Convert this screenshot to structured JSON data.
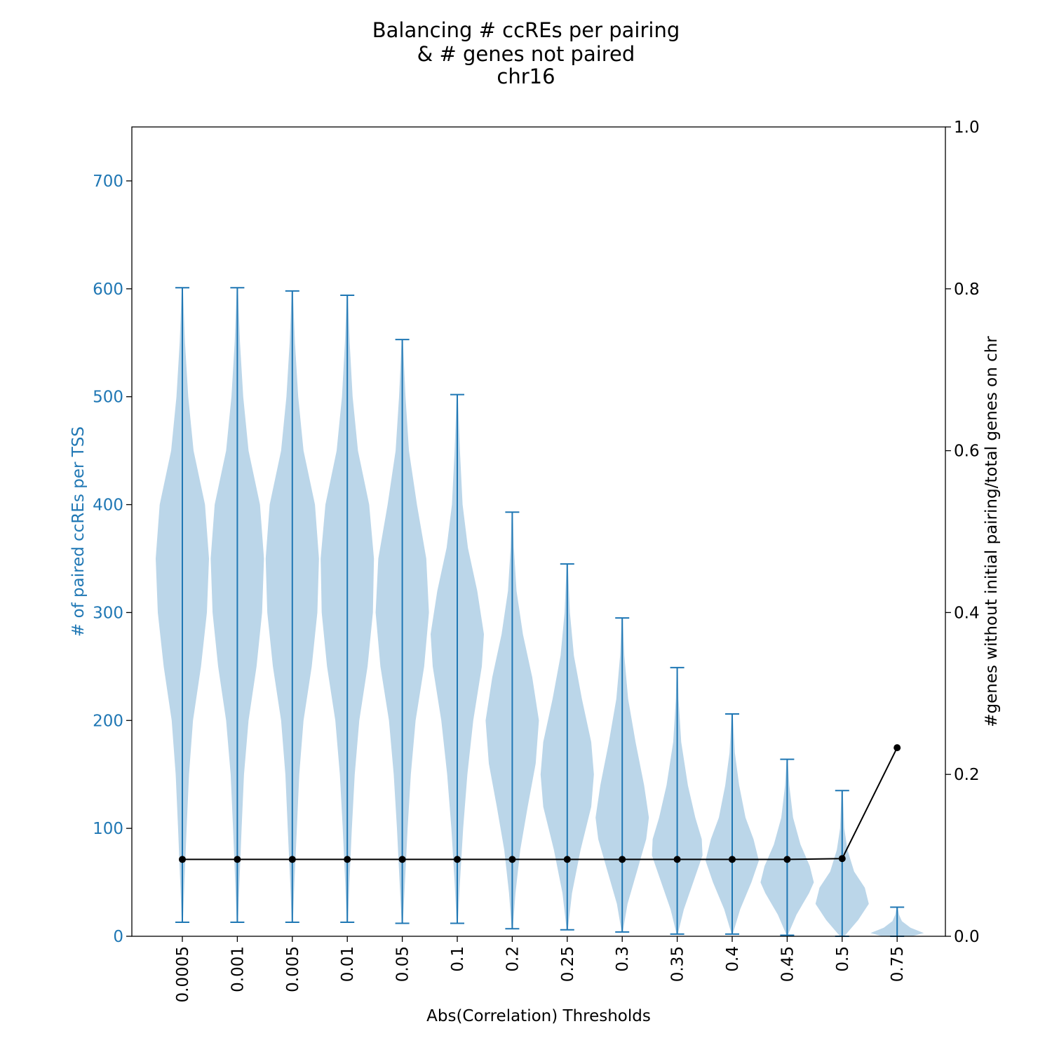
{
  "chart_data": {
    "type": "violin",
    "title_lines": [
      "Balancing # ccREs per pairing",
      "& # genes not paired",
      "chr16"
    ],
    "xlabel": "Abs(Correlation) Thresholds",
    "ylabel_left": "# of paired ccREs per TSS",
    "ylabel_right": "#genes without initial pairing/total genes on chr",
    "categories": [
      "0.0005",
      "0.001",
      "0.005",
      "0.01",
      "0.05",
      "0.1",
      "0.2",
      "0.25",
      "0.3",
      "0.35",
      "0.4",
      "0.45",
      "0.5",
      "0.75"
    ],
    "ylim_left": [
      0,
      750
    ],
    "yticks_left": [
      0,
      100,
      200,
      300,
      400,
      500,
      600,
      700
    ],
    "ylim_right": [
      0,
      1.0
    ],
    "yticks_right": [
      0.0,
      0.2,
      0.4,
      0.6,
      0.8,
      1.0
    ],
    "colors": {
      "violin_fill": "#bbd6e9",
      "violin_line": "#1f77b4",
      "line": "#000000",
      "left_axis_text": "#1f77b4"
    },
    "violins": [
      {
        "category": "0.0005",
        "min": 13,
        "max": 601,
        "profile": [
          [
            13,
            0.02
          ],
          [
            50,
            0.08
          ],
          [
            100,
            0.16
          ],
          [
            150,
            0.25
          ],
          [
            200,
            0.4
          ],
          [
            250,
            0.7
          ],
          [
            300,
            0.92
          ],
          [
            350,
            1.0
          ],
          [
            400,
            0.85
          ],
          [
            450,
            0.42
          ],
          [
            500,
            0.22
          ],
          [
            550,
            0.1
          ],
          [
            601,
            0.02
          ]
        ]
      },
      {
        "category": "0.001",
        "min": 13,
        "max": 601,
        "profile": [
          [
            13,
            0.02
          ],
          [
            50,
            0.08
          ],
          [
            100,
            0.16
          ],
          [
            150,
            0.25
          ],
          [
            200,
            0.42
          ],
          [
            250,
            0.72
          ],
          [
            300,
            0.93
          ],
          [
            350,
            1.0
          ],
          [
            400,
            0.85
          ],
          [
            450,
            0.42
          ],
          [
            500,
            0.22
          ],
          [
            550,
            0.1
          ],
          [
            601,
            0.02
          ]
        ]
      },
      {
        "category": "0.005",
        "min": 13,
        "max": 598,
        "profile": [
          [
            13,
            0.02
          ],
          [
            50,
            0.08
          ],
          [
            100,
            0.17
          ],
          [
            150,
            0.26
          ],
          [
            200,
            0.42
          ],
          [
            250,
            0.73
          ],
          [
            300,
            0.94
          ],
          [
            350,
            1.0
          ],
          [
            400,
            0.85
          ],
          [
            450,
            0.42
          ],
          [
            500,
            0.22
          ],
          [
            550,
            0.1
          ],
          [
            598,
            0.02
          ]
        ]
      },
      {
        "category": "0.01",
        "min": 13,
        "max": 594,
        "profile": [
          [
            13,
            0.02
          ],
          [
            50,
            0.08
          ],
          [
            100,
            0.17
          ],
          [
            150,
            0.28
          ],
          [
            200,
            0.45
          ],
          [
            250,
            0.76
          ],
          [
            300,
            0.96
          ],
          [
            350,
            1.0
          ],
          [
            400,
            0.82
          ],
          [
            450,
            0.4
          ],
          [
            500,
            0.2
          ],
          [
            550,
            0.09
          ],
          [
            594,
            0.02
          ]
        ]
      },
      {
        "category": "0.05",
        "min": 12,
        "max": 553,
        "profile": [
          [
            12,
            0.02
          ],
          [
            50,
            0.1
          ],
          [
            100,
            0.2
          ],
          [
            150,
            0.32
          ],
          [
            200,
            0.5
          ],
          [
            250,
            0.82
          ],
          [
            300,
            1.0
          ],
          [
            350,
            0.9
          ],
          [
            400,
            0.55
          ],
          [
            450,
            0.25
          ],
          [
            500,
            0.12
          ],
          [
            553,
            0.02
          ]
        ]
      },
      {
        "category": "0.1",
        "min": 12,
        "max": 502,
        "profile": [
          [
            12,
            0.02
          ],
          [
            50,
            0.1
          ],
          [
            100,
            0.22
          ],
          [
            150,
            0.38
          ],
          [
            200,
            0.6
          ],
          [
            250,
            0.92
          ],
          [
            280,
            1.0
          ],
          [
            320,
            0.75
          ],
          [
            360,
            0.4
          ],
          [
            400,
            0.2
          ],
          [
            450,
            0.1
          ],
          [
            502,
            0.02
          ]
        ]
      },
      {
        "category": "0.2",
        "min": 7,
        "max": 393,
        "profile": [
          [
            7,
            0.02
          ],
          [
            40,
            0.12
          ],
          [
            80,
            0.3
          ],
          [
            120,
            0.58
          ],
          [
            160,
            0.88
          ],
          [
            200,
            1.0
          ],
          [
            240,
            0.75
          ],
          [
            280,
            0.4
          ],
          [
            320,
            0.16
          ],
          [
            360,
            0.06
          ],
          [
            393,
            0.02
          ]
        ]
      },
      {
        "category": "0.25",
        "min": 6,
        "max": 345,
        "profile": [
          [
            6,
            0.02
          ],
          [
            40,
            0.18
          ],
          [
            80,
            0.5
          ],
          [
            120,
            0.9
          ],
          [
            150,
            1.0
          ],
          [
            180,
            0.9
          ],
          [
            220,
            0.55
          ],
          [
            260,
            0.25
          ],
          [
            300,
            0.1
          ],
          [
            345,
            0.02
          ]
        ]
      },
      {
        "category": "0.3",
        "min": 4,
        "max": 295,
        "profile": [
          [
            4,
            0.02
          ],
          [
            30,
            0.2
          ],
          [
            60,
            0.55
          ],
          [
            90,
            0.9
          ],
          [
            110,
            1.0
          ],
          [
            140,
            0.82
          ],
          [
            180,
            0.5
          ],
          [
            220,
            0.22
          ],
          [
            260,
            0.08
          ],
          [
            295,
            0.02
          ]
        ]
      },
      {
        "category": "0.35",
        "min": 2,
        "max": 249,
        "profile": [
          [
            2,
            0.02
          ],
          [
            25,
            0.25
          ],
          [
            50,
            0.6
          ],
          [
            75,
            0.95
          ],
          [
            90,
            0.92
          ],
          [
            110,
            0.68
          ],
          [
            140,
            0.4
          ],
          [
            180,
            0.15
          ],
          [
            220,
            0.05
          ],
          [
            249,
            0.02
          ]
        ]
      },
      {
        "category": "0.4",
        "min": 2,
        "max": 206,
        "profile": [
          [
            2,
            0.02
          ],
          [
            25,
            0.3
          ],
          [
            50,
            0.72
          ],
          [
            70,
            1.0
          ],
          [
            90,
            0.8
          ],
          [
            110,
            0.5
          ],
          [
            140,
            0.26
          ],
          [
            170,
            0.1
          ],
          [
            206,
            0.02
          ]
        ]
      },
      {
        "category": "0.45",
        "min": 1,
        "max": 164,
        "profile": [
          [
            1,
            0.02
          ],
          [
            20,
            0.35
          ],
          [
            40,
            0.82
          ],
          [
            50,
            1.0
          ],
          [
            65,
            0.85
          ],
          [
            85,
            0.5
          ],
          [
            110,
            0.22
          ],
          [
            140,
            0.08
          ],
          [
            164,
            0.02
          ]
        ]
      },
      {
        "category": "0.5",
        "min": 0,
        "max": 135,
        "profile": [
          [
            0,
            0.08
          ],
          [
            15,
            0.6
          ],
          [
            30,
            1.0
          ],
          [
            45,
            0.85
          ],
          [
            60,
            0.45
          ],
          [
            80,
            0.2
          ],
          [
            100,
            0.08
          ],
          [
            135,
            0.02
          ]
        ]
      },
      {
        "category": "0.75",
        "min": 0,
        "max": 27,
        "profile": [
          [
            0,
            0.55
          ],
          [
            3,
            1.0
          ],
          [
            8,
            0.5
          ],
          [
            14,
            0.18
          ],
          [
            20,
            0.07
          ],
          [
            27,
            0.02
          ]
        ]
      }
    ],
    "line_series": {
      "name": "",
      "values": [
        0.095,
        0.095,
        0.095,
        0.095,
        0.095,
        0.095,
        0.095,
        0.095,
        0.095,
        0.095,
        0.095,
        0.095,
        0.096,
        0.233
      ]
    }
  }
}
